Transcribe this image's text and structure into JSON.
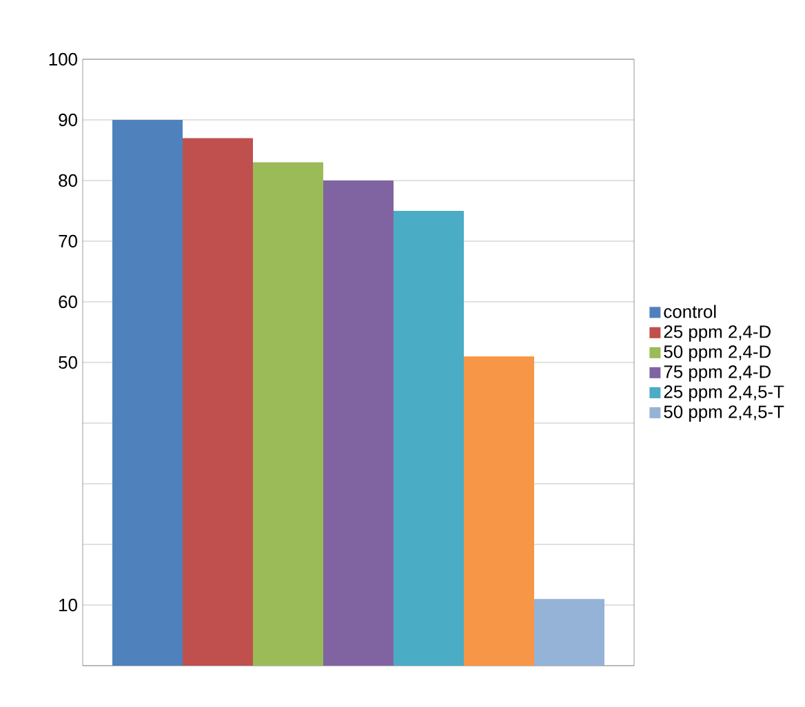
{
  "chart_data": {
    "type": "bar",
    "categories": [
      null
    ],
    "series": [
      {
        "name": "control",
        "color": "#4f81bd",
        "values": [
          90
        ]
      },
      {
        "name": "25 ppm 2,4-D",
        "color": "#c0504d",
        "values": [
          87
        ]
      },
      {
        "name": "50 ppm 2,4-D",
        "color": "#9bbb59",
        "values": [
          83
        ]
      },
      {
        "name": "75 ppm 2,4-D",
        "color": "#8064a2",
        "values": [
          80
        ]
      },
      {
        "name": "25 ppm 2,4,5-T",
        "color": "#4bacc6",
        "values": [
          75
        ]
      },
      {
        "color": "#f79646",
        "values": [
          51
        ]
      },
      {
        "name": "50 ppm 2,4,5-T",
        "color": "#95b3d7",
        "values": [
          11
        ]
      }
    ],
    "ylim": [
      0,
      100
    ],
    "yticks": [
      {
        "value": 0,
        "label": null
      },
      10,
      {
        "value": 20,
        "label": null
      },
      {
        "value": 30,
        "label": null
      },
      {
        "value": 40,
        "label": null
      },
      50,
      60,
      70,
      80,
      90,
      100
    ],
    "grid": "y",
    "legend": "right",
    "tick_labels": "y"
  }
}
